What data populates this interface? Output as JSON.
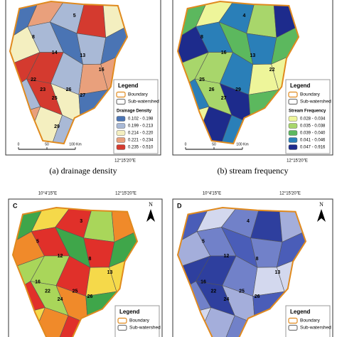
{
  "panels": [
    {
      "legend": {
        "title": "Legend",
        "items": [
          "Boundary",
          "Sub-watershed"
        ],
        "class_title": "Drainage Density",
        "classes": [
          {
            "label": "0.102 - 0.198",
            "color": "#4a74b4"
          },
          {
            "label": "0.199 - 0.213",
            "color": "#a9b9d6"
          },
          {
            "label": "0.214 - 0.220",
            "color": "#f4efc0"
          },
          {
            "label": "0.221 - 0.234",
            "color": "#e9a07c"
          },
          {
            "label": "0.235 - 0.510",
            "color": "#d43a2f"
          }
        ]
      },
      "coords_bottom": [
        "12°15'20\"E"
      ],
      "scale": [
        "0",
        "50",
        "100 Km"
      ],
      "caption": "(a) drainage density",
      "labels": [
        "5",
        "8",
        "13",
        "14",
        "16",
        "22",
        "23",
        "25",
        "26",
        "27",
        "29"
      ]
    },
    {
      "legend": {
        "title": "Legend",
        "items": [
          "Boundary",
          "Sub-watershed"
        ],
        "class_title": "Stream Frequency",
        "classes": [
          {
            "label": "0.028 - 0.034",
            "color": "#eef59a"
          },
          {
            "label": "0.035 - 0.038",
            "color": "#a8d66b"
          },
          {
            "label": "0.039 - 0.040",
            "color": "#5cb85e"
          },
          {
            "label": "0.041 - 0.046",
            "color": "#2a7fb8"
          },
          {
            "label": "0.047 - 0.916",
            "color": "#1d2b8c"
          }
        ]
      },
      "coords_bottom": [
        "12°15'20\"E"
      ],
      "scale": [
        "0",
        "50",
        "100 Km"
      ],
      "caption": "(b) stream frequency",
      "labels": [
        "4",
        "8",
        "13",
        "16",
        "22",
        "25",
        "26",
        "27",
        "29"
      ]
    },
    {
      "letter": "C",
      "north": "N",
      "coords_top": [
        "10°4'15\"E",
        "12°15'20\"E"
      ],
      "legend": {
        "title": "Legend",
        "items": [
          "Boundary",
          "Sub-watershed"
        ]
      },
      "fill_colors": [
        "#e0302a",
        "#f08a2a",
        "#f5d94a",
        "#a9d65a",
        "#3fa64a"
      ],
      "labels": [
        "3",
        "5",
        "8",
        "12",
        "13",
        "16",
        "22",
        "24",
        "25",
        "26"
      ]
    },
    {
      "letter": "D",
      "north": "N",
      "coords_top": [
        "10°4'15\"E",
        "12°15'20\"E"
      ],
      "legend": {
        "title": "Legend",
        "items": [
          "Boundary",
          "Sub-watershed"
        ]
      },
      "fill_colors": [
        "#2e3f9e",
        "#4a5db8",
        "#7181c9",
        "#a4aedb",
        "#d3d8ee"
      ],
      "labels": [
        "4",
        "5",
        "8",
        "12",
        "13",
        "16",
        "22",
        "24",
        "25",
        "26"
      ]
    }
  ]
}
